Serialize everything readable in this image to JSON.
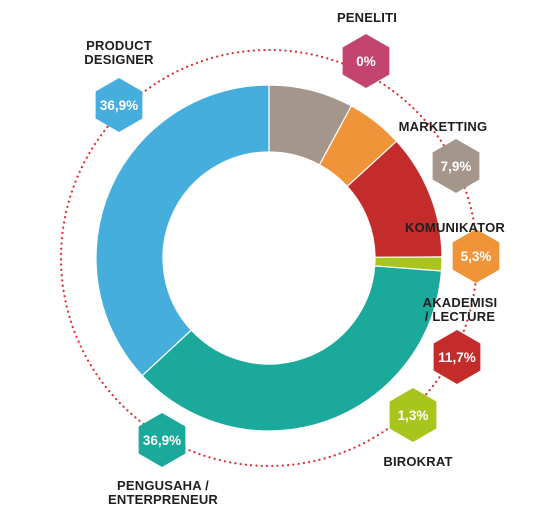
{
  "chart_data": {
    "type": "pie",
    "style": "donut",
    "categories": [
      "PENELITI",
      "MARKETTING",
      "KOMUNIKATOR",
      "AKADEMISI / LECTURE",
      "BIROKRAT",
      "PENGUSAHA / ENTERPRENEUR",
      "PRODUCT DESIGNER"
    ],
    "values": [
      0,
      7.9,
      5.3,
      11.7,
      1.3,
      36.9,
      36.9
    ],
    "value_labels": [
      "0%",
      "7,9%",
      "5,3%",
      "11,7%",
      "1,3%",
      "36,9%",
      "36,9%"
    ],
    "colors": [
      "#c2446f",
      "#a4968b",
      "#f0943a",
      "#c42b2b",
      "#a8c51d",
      "#1aa99a",
      "#45aedc"
    ],
    "label_lines": [
      [
        "PENELITI"
      ],
      [
        "MARKETTING"
      ],
      [
        "KOMUNIKATOR"
      ],
      [
        "AKADEMISI",
        "/ LECTURE"
      ],
      [
        "BIROKRAT"
      ],
      [
        "PENGUSAHA /",
        "ENTERPRENEUR"
      ],
      [
        "PRODUCT",
        "DESIGNER"
      ]
    ],
    "decor": {
      "dotted_ring_color": "#e03030"
    },
    "title": "",
    "legend": "none"
  }
}
